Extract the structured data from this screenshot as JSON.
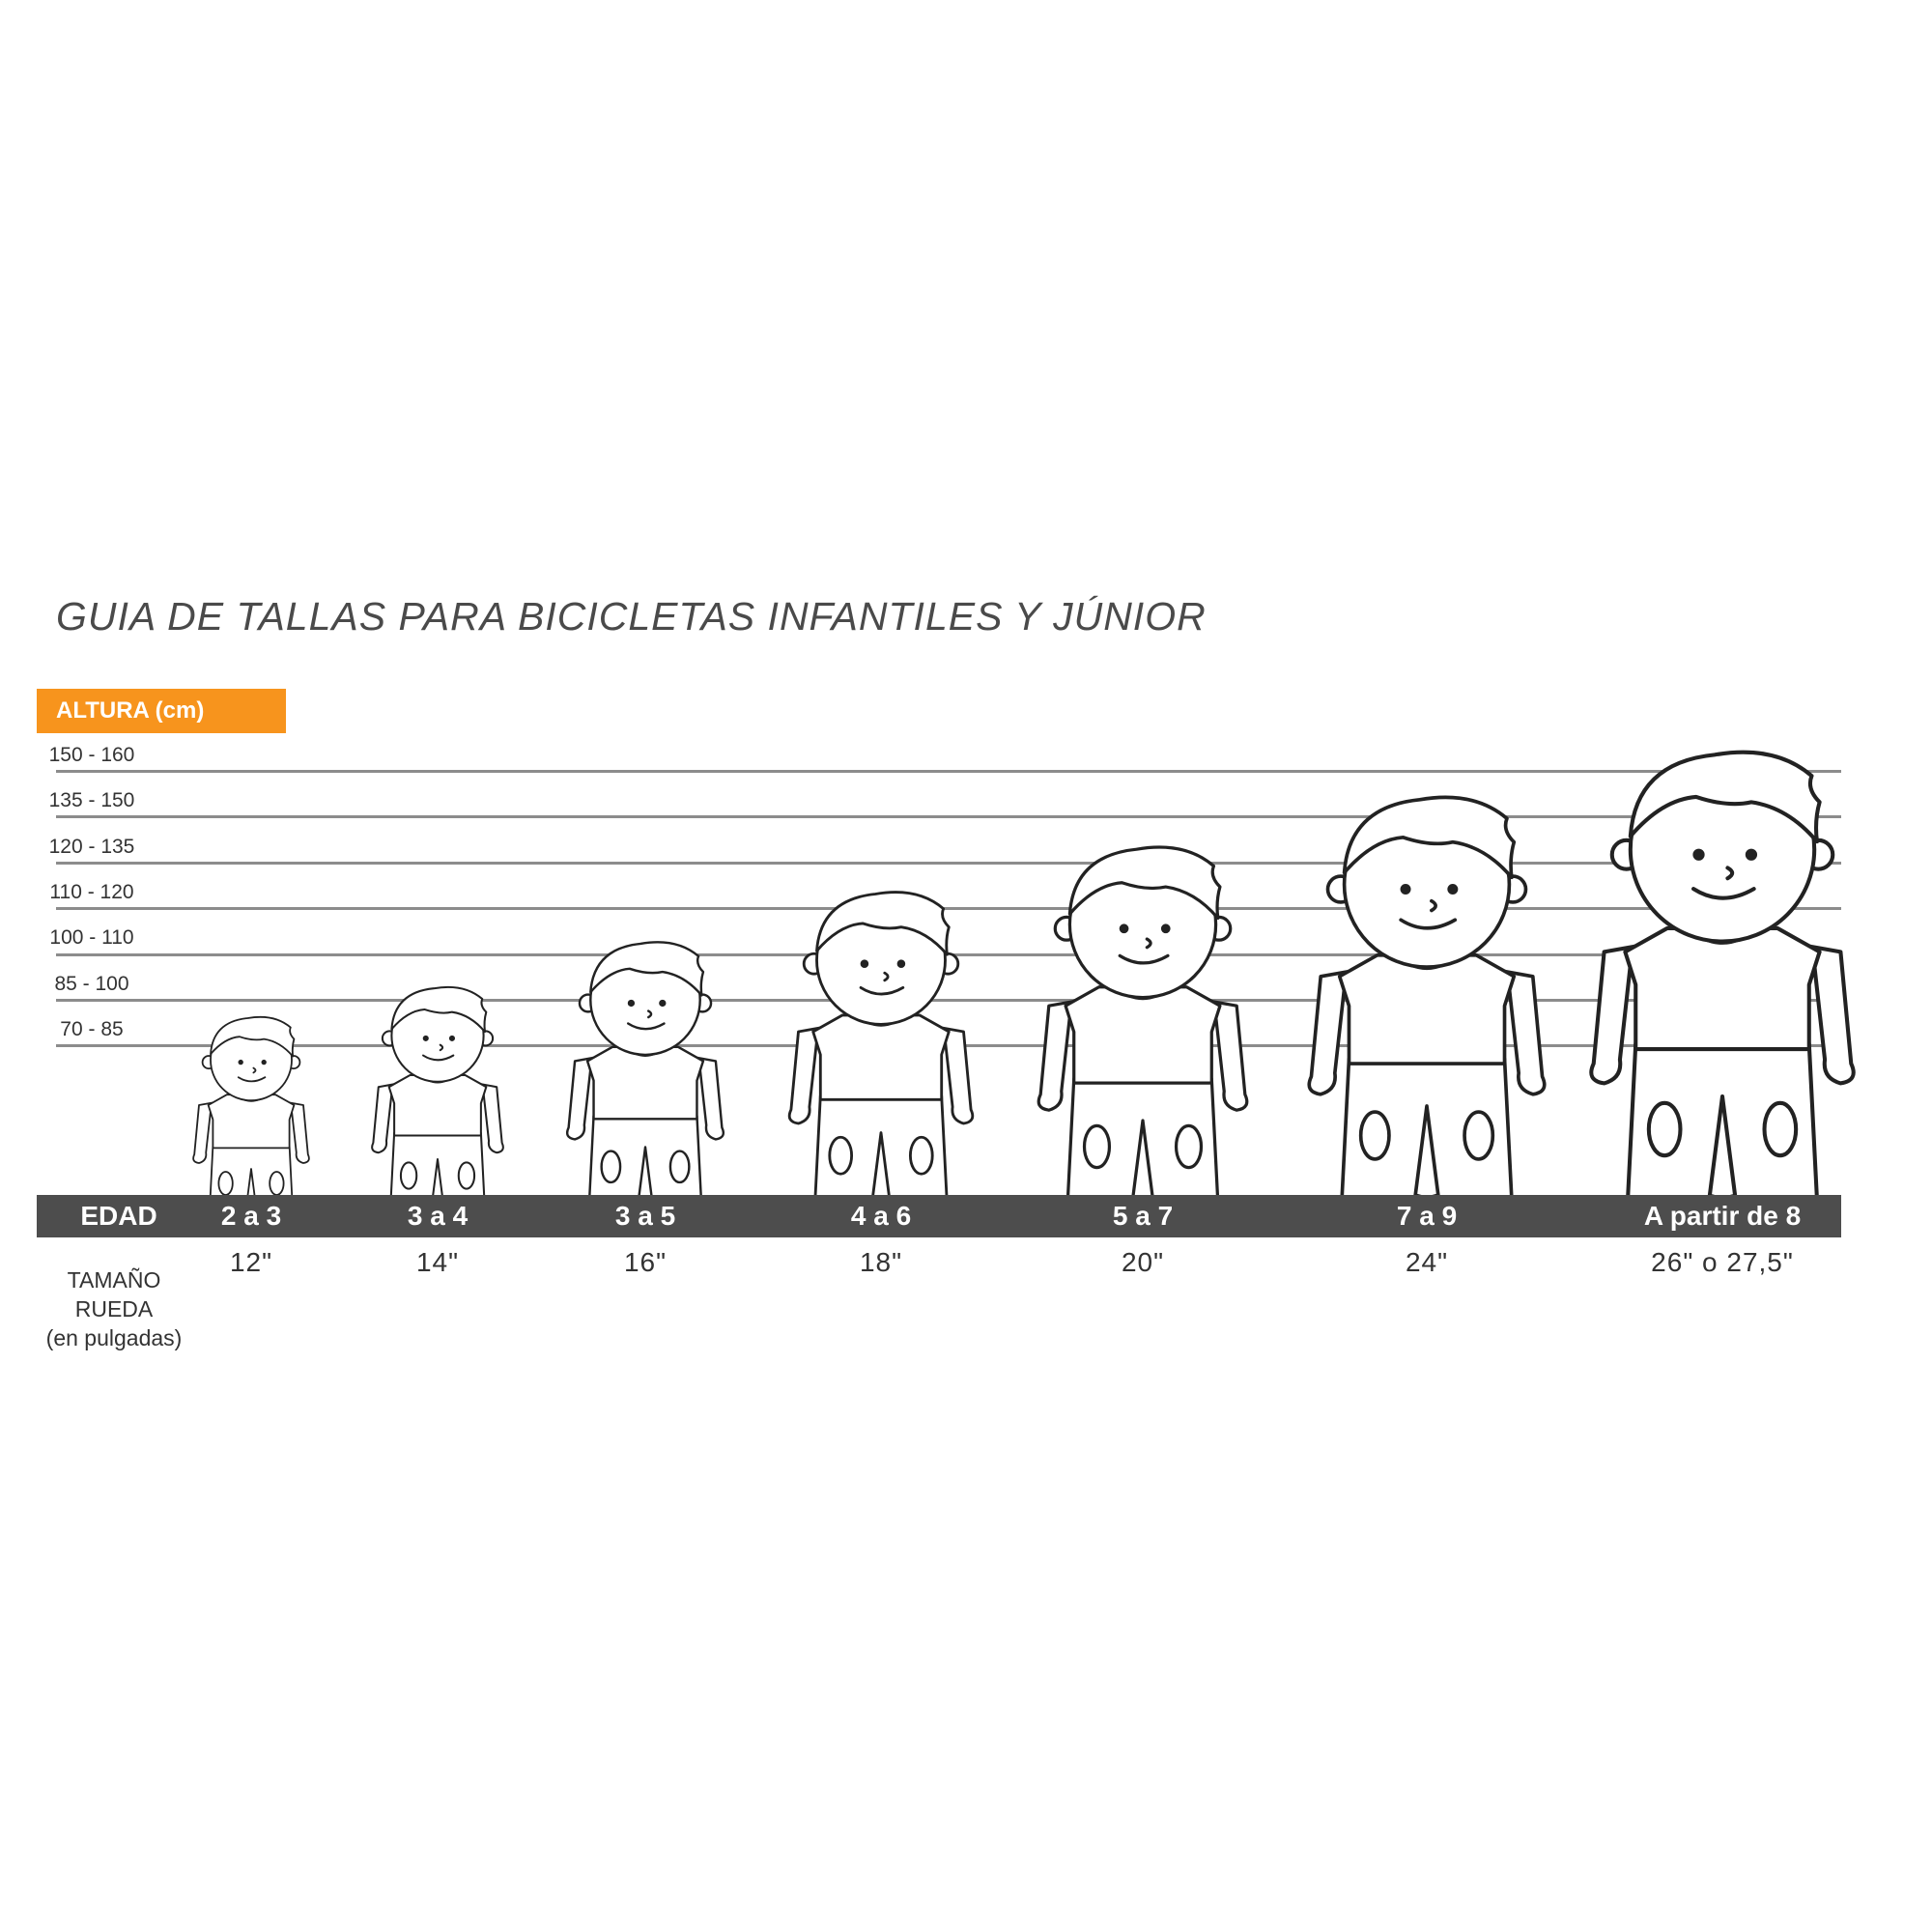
{
  "title": "GUIA DE TALLAS PARA BICICLETAS INFANTILES Y JÚNIOR",
  "height_header": "ALTURA (cm)",
  "height_ranges": [
    "150 - 160",
    "135 - 150",
    "120 - 135",
    "110 - 120",
    "100 - 110",
    "85 - 100",
    "70 - 85"
  ],
  "age_header": "EDAD",
  "wheel_header": {
    "line1": "TAMAÑO",
    "line2": "RUEDA",
    "line3": "(en pulgadas)"
  },
  "sizes": [
    {
      "age": "2 a 3",
      "wheel": "12\""
    },
    {
      "age": "3 a 4",
      "wheel": "14\""
    },
    {
      "age": "3 a 5",
      "wheel": "16\""
    },
    {
      "age": "4 a 6",
      "wheel": "18\""
    },
    {
      "age": "5 a 7",
      "wheel": "20\""
    },
    {
      "age": "7 a 9",
      "wheel": "24\""
    },
    {
      "age": "A partir de 8",
      "wheel": "26\" o 27,5\""
    }
  ],
  "colors": {
    "accent": "#f7941d",
    "bar": "#4d4d4d",
    "lines": "#8c8c8c"
  }
}
